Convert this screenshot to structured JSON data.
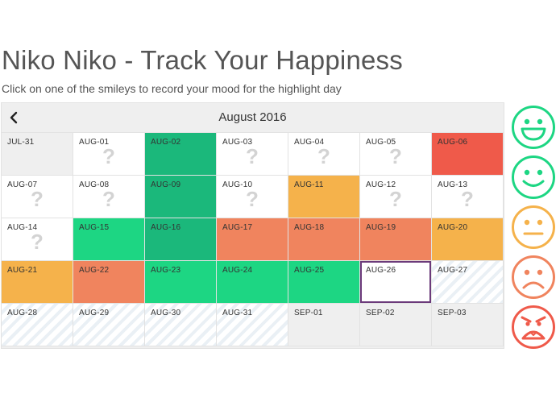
{
  "page": {
    "title": "Niko Niko - Track Your Happiness",
    "subtitle": "Click on one of the smileys to record your mood for the highlight day"
  },
  "calendar": {
    "month": "August 2016",
    "prev_icon": "chevron-left-icon",
    "placeholder": "?",
    "rows": [
      [
        {
          "label": "JUL-31",
          "mood": "grey",
          "unknown": false
        },
        {
          "label": "AUG-01",
          "mood": "white",
          "unknown": true
        },
        {
          "label": "AUG-02",
          "mood": "dgreen",
          "unknown": false
        },
        {
          "label": "AUG-03",
          "mood": "white",
          "unknown": true
        },
        {
          "label": "AUG-04",
          "mood": "white",
          "unknown": true
        },
        {
          "label": "AUG-05",
          "mood": "white",
          "unknown": true
        },
        {
          "label": "AUG-06",
          "mood": "red",
          "unknown": false
        }
      ],
      [
        {
          "label": "AUG-07",
          "mood": "white",
          "unknown": true
        },
        {
          "label": "AUG-08",
          "mood": "white",
          "unknown": true
        },
        {
          "label": "AUG-09",
          "mood": "dgreen",
          "unknown": false
        },
        {
          "label": "AUG-10",
          "mood": "white",
          "unknown": true
        },
        {
          "label": "AUG-11",
          "mood": "yellow",
          "unknown": false
        },
        {
          "label": "AUG-12",
          "mood": "white",
          "unknown": true
        },
        {
          "label": "AUG-13",
          "mood": "white",
          "unknown": true
        }
      ],
      [
        {
          "label": "AUG-14",
          "mood": "white",
          "unknown": true
        },
        {
          "label": "AUG-15",
          "mood": "green",
          "unknown": false
        },
        {
          "label": "AUG-16",
          "mood": "dgreen",
          "unknown": false
        },
        {
          "label": "AUG-17",
          "mood": "orange",
          "unknown": false
        },
        {
          "label": "AUG-18",
          "mood": "orange",
          "unknown": false
        },
        {
          "label": "AUG-19",
          "mood": "orange",
          "unknown": false
        },
        {
          "label": "AUG-20",
          "mood": "yellow",
          "unknown": false
        }
      ],
      [
        {
          "label": "AUG-21",
          "mood": "yellow",
          "unknown": false
        },
        {
          "label": "AUG-22",
          "mood": "orange",
          "unknown": false
        },
        {
          "label": "AUG-23",
          "mood": "green",
          "unknown": false
        },
        {
          "label": "AUG-24",
          "mood": "green",
          "unknown": false
        },
        {
          "label": "AUG-25",
          "mood": "green",
          "unknown": false
        },
        {
          "label": "AUG-26",
          "mood": "selected",
          "unknown": false
        },
        {
          "label": "AUG-27",
          "mood": "future",
          "unknown": false
        }
      ],
      [
        {
          "label": "AUG-28",
          "mood": "future",
          "unknown": false
        },
        {
          "label": "AUG-29",
          "mood": "future",
          "unknown": false
        },
        {
          "label": "AUG-30",
          "mood": "future",
          "unknown": false
        },
        {
          "label": "AUG-31",
          "mood": "future",
          "unknown": false
        },
        {
          "label": "SEP-01",
          "mood": "grey",
          "unknown": false
        },
        {
          "label": "SEP-02",
          "mood": "grey",
          "unknown": false
        },
        {
          "label": "SEP-03",
          "mood": "grey",
          "unknown": false
        }
      ]
    ]
  },
  "moods": [
    {
      "name": "ecstatic",
      "icon": "grinning-face-icon",
      "color": "#1dd683"
    },
    {
      "name": "happy",
      "icon": "smiling-face-icon",
      "color": "#1dd683"
    },
    {
      "name": "neutral",
      "icon": "neutral-face-icon",
      "color": "#f5b24b"
    },
    {
      "name": "sad",
      "icon": "frowning-face-icon",
      "color": "#f0845e"
    },
    {
      "name": "angry",
      "icon": "angry-face-icon",
      "color": "#ef5a4a"
    }
  ],
  "colors": {
    "green": "#1dd683",
    "dark_green": "#1bb87b",
    "yellow": "#f5b24b",
    "orange": "#f0845e",
    "red": "#ef5a4a",
    "selected_border": "#6b3a7a"
  }
}
